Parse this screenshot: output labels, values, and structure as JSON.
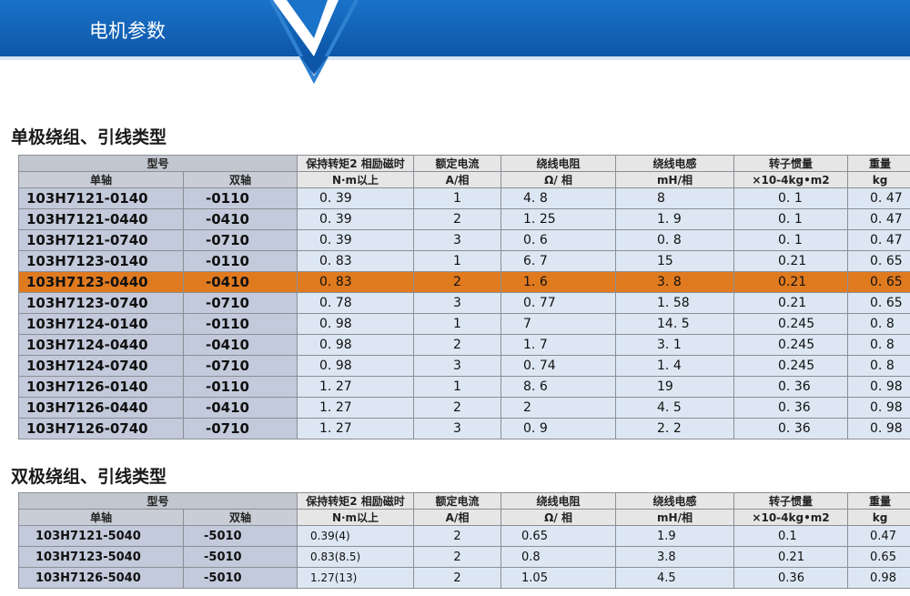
{
  "header": {
    "title": "电机参数"
  },
  "section1": {
    "title": "单极绕组、引线类型",
    "model_label": "型号",
    "headers": [
      "保持转矩2 相励磁时",
      "额定电流",
      "绕线电阻",
      "绕线电感",
      "转子惯量",
      "重量"
    ],
    "subheaders": [
      "单轴",
      "双轴",
      "N·m以上",
      "A/相",
      "Ω/ 相",
      "mH/相",
      "×10-4kg•m2",
      "kg"
    ],
    "rows": [
      {
        "single": "103H7121-0140",
        "double": "-0110",
        "torque": "0. 39",
        "current": "1",
        "resistance": "4. 8",
        "inductance": "8",
        "inertia": "0. 1",
        "weight": "0. 47",
        "highlight": false
      },
      {
        "single": "103H7121-0440",
        "double": "-0410",
        "torque": "0. 39",
        "current": "2",
        "resistance": "1. 25",
        "inductance": "1. 9",
        "inertia": "0. 1",
        "weight": "0. 47",
        "highlight": false
      },
      {
        "single": "103H7121-0740",
        "double": "-0710",
        "torque": "0. 39",
        "current": "3",
        "resistance": "0. 6",
        "inductance": "0. 8",
        "inertia": "0. 1",
        "weight": "0. 47",
        "highlight": false
      },
      {
        "single": "103H7123-0140",
        "double": "-0110",
        "torque": "0. 83",
        "current": "1",
        "resistance": "6. 7",
        "inductance": "15",
        "inertia": "0.21",
        "weight": "0. 65",
        "highlight": false
      },
      {
        "single": "103H7123-0440",
        "double": "-0410",
        "torque": "0. 83",
        "current": "2",
        "resistance": "1. 6",
        "inductance": "3. 8",
        "inertia": "0.21",
        "weight": "0. 65",
        "highlight": true
      },
      {
        "single": "103H7123-0740",
        "double": "-0710",
        "torque": "0. 78",
        "current": "3",
        "resistance": "0. 77",
        "inductance": "1. 58",
        "inertia": "0.21",
        "weight": "0. 65",
        "highlight": false
      },
      {
        "single": "103H7124-0140",
        "double": "-0110",
        "torque": "0. 98",
        "current": "1",
        "resistance": "7",
        "inductance": "14. 5",
        "inertia": "0.245",
        "weight": "0. 8",
        "highlight": false
      },
      {
        "single": "103H7124-0440",
        "double": "-0410",
        "torque": "0. 98",
        "current": "2",
        "resistance": "1. 7",
        "inductance": "3. 1",
        "inertia": "0.245",
        "weight": "0. 8",
        "highlight": false
      },
      {
        "single": "103H7124-0740",
        "double": "-0710",
        "torque": "0. 98",
        "current": "3",
        "resistance": "0. 74",
        "inductance": "1. 4",
        "inertia": "0.245",
        "weight": "0. 8",
        "highlight": false
      },
      {
        "single": "103H7126-0140",
        "double": "-0110",
        "torque": "1. 27",
        "current": "1",
        "resistance": "8. 6",
        "inductance": "19",
        "inertia": "0. 36",
        "weight": "0. 98",
        "highlight": false
      },
      {
        "single": "103H7126-0440",
        "double": "-0410",
        "torque": "1. 27",
        "current": "2",
        "resistance": "2",
        "inductance": "4. 5",
        "inertia": "0. 36",
        "weight": "0. 98",
        "highlight": false
      },
      {
        "single": "103H7126-0740",
        "double": "-0710",
        "torque": "1. 27",
        "current": "3",
        "resistance": "0. 9",
        "inductance": "2. 2",
        "inertia": "0. 36",
        "weight": "0. 98",
        "highlight": false
      }
    ]
  },
  "section2": {
    "title": "双极绕组、引线类型",
    "model_label": "型号",
    "headers": [
      "保持转矩2 相励磁时",
      "额定电流",
      "绕线电阻",
      "绕线电感",
      "转子惯量",
      "重量"
    ],
    "subheaders": [
      "单轴",
      "双轴",
      "N·m以上",
      "A/相",
      "Ω/ 相",
      "mH/相",
      "×10-4kg•m2",
      "kg"
    ],
    "rows": [
      {
        "single": "103H7121-5040",
        "double": "-5010",
        "torque": "0.39(4)",
        "current": "2",
        "resistance": "0.65",
        "inductance": "1.9",
        "inertia": "0.1",
        "weight": "0.47",
        "highlight": false
      },
      {
        "single": "103H7123-5040",
        "double": "-5010",
        "torque": "0.83(8.5)",
        "current": "2",
        "resistance": "0.8",
        "inductance": "3.8",
        "inertia": "0.21",
        "weight": "0.65",
        "highlight": false
      },
      {
        "single": "103H7126-5040",
        "double": "-5010",
        "torque": "1.27(13)",
        "current": "2",
        "resistance": "1.05",
        "inductance": "4.5",
        "inertia": "0.36",
        "weight": "0.98",
        "highlight": false
      }
    ]
  },
  "colors": {
    "banner_blue": "#1565b8",
    "highlight": "#e07a1f",
    "cell_bg": "#dce7f3",
    "model_bg": "#c2cadb"
  }
}
